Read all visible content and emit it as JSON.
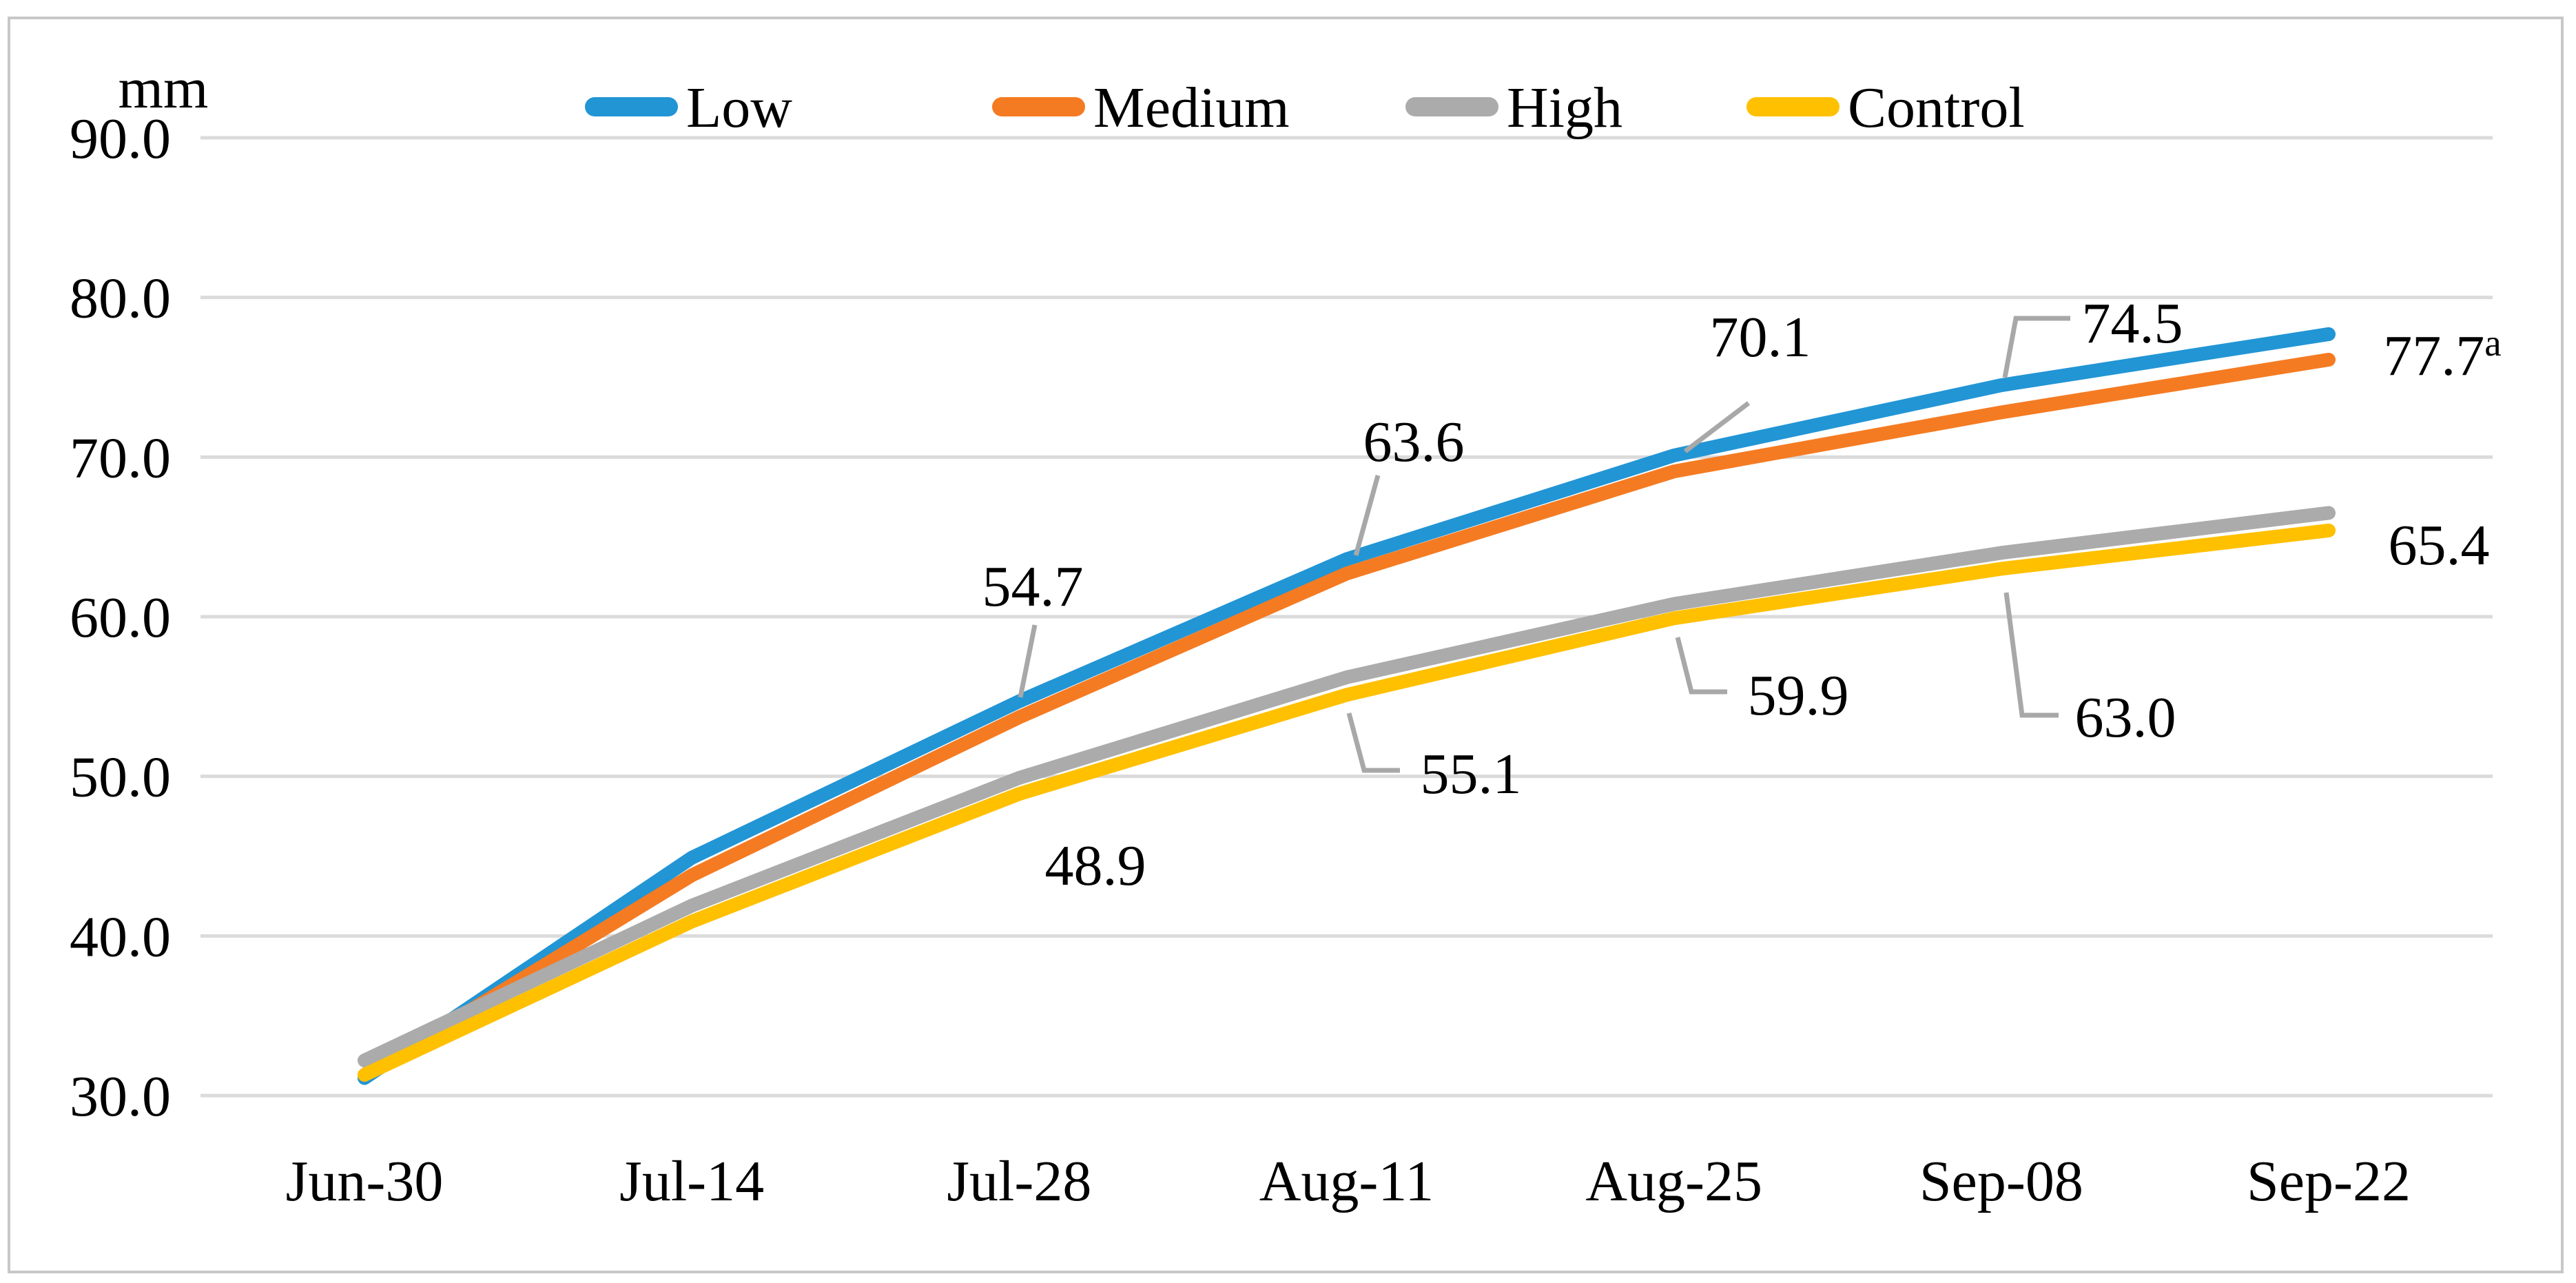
{
  "figure": {
    "background": "#FFFFFF",
    "frame_color": "#C8C8C8"
  },
  "axis": {
    "unit_label": "mm",
    "y_tick_labels": [
      "90.0",
      "80.0",
      "70.0",
      "60.0",
      "50.0",
      "40.0",
      "30.0"
    ],
    "x_tick_labels": [
      "Jun-30",
      "Jul-14",
      "Jul-28",
      "Aug-11",
      "Aug-25",
      "Sep-08",
      "Sep-22"
    ]
  },
  "legend": {
    "position": "top",
    "items": [
      {
        "label": "Low",
        "color": "#2295D5"
      },
      {
        "label": "Medium",
        "color": "#F57B22"
      },
      {
        "label": "High",
        "color": "#ABABAB"
      },
      {
        "label": "Control",
        "color": "#FFC000"
      }
    ]
  },
  "chart_data": {
    "type": "line",
    "title": "",
    "xlabel": "",
    "ylabel": "mm",
    "ylim": [
      30,
      90
    ],
    "ytick_step": 10,
    "grid": true,
    "legend_position": "top",
    "gridline_color": "#DBDBDB",
    "leader_color": "#A8A8A8",
    "text_color": "#000000",
    "categories": [
      "Jun-30",
      "Jul-14",
      "Jul-28",
      "Aug-11",
      "Aug-25",
      "Sep-08",
      "Sep-22"
    ],
    "series": [
      {
        "name": "Low",
        "color": "#2295D5",
        "values": [
          31.1,
          44.9,
          54.7,
          63.6,
          70.1,
          74.5,
          77.7
        ],
        "point_labels": {
          "2": "54.7",
          "3": "63.6",
          "4": "70.1",
          "5": "74.5",
          "6": "77.7"
        },
        "point_label_superscripts": {
          "6": "a"
        }
      },
      {
        "name": "Medium",
        "color": "#F57B22",
        "values": [
          31.3,
          43.8,
          53.7,
          62.7,
          69.1,
          72.8,
          76.1
        ],
        "point_labels": {}
      },
      {
        "name": "High",
        "color": "#ABABAB",
        "values": [
          32.2,
          41.9,
          49.9,
          56.2,
          60.8,
          64.0,
          66.5
        ],
        "point_labels": {}
      },
      {
        "name": "Control",
        "color": "#FFC000",
        "values": [
          31.3,
          40.9,
          48.9,
          55.1,
          59.9,
          63.0,
          65.4
        ],
        "point_labels": {
          "2": "48.9",
          "3": "55.1",
          "4": "59.9",
          "5": "63.0",
          "6": "65.4"
        }
      }
    ]
  }
}
